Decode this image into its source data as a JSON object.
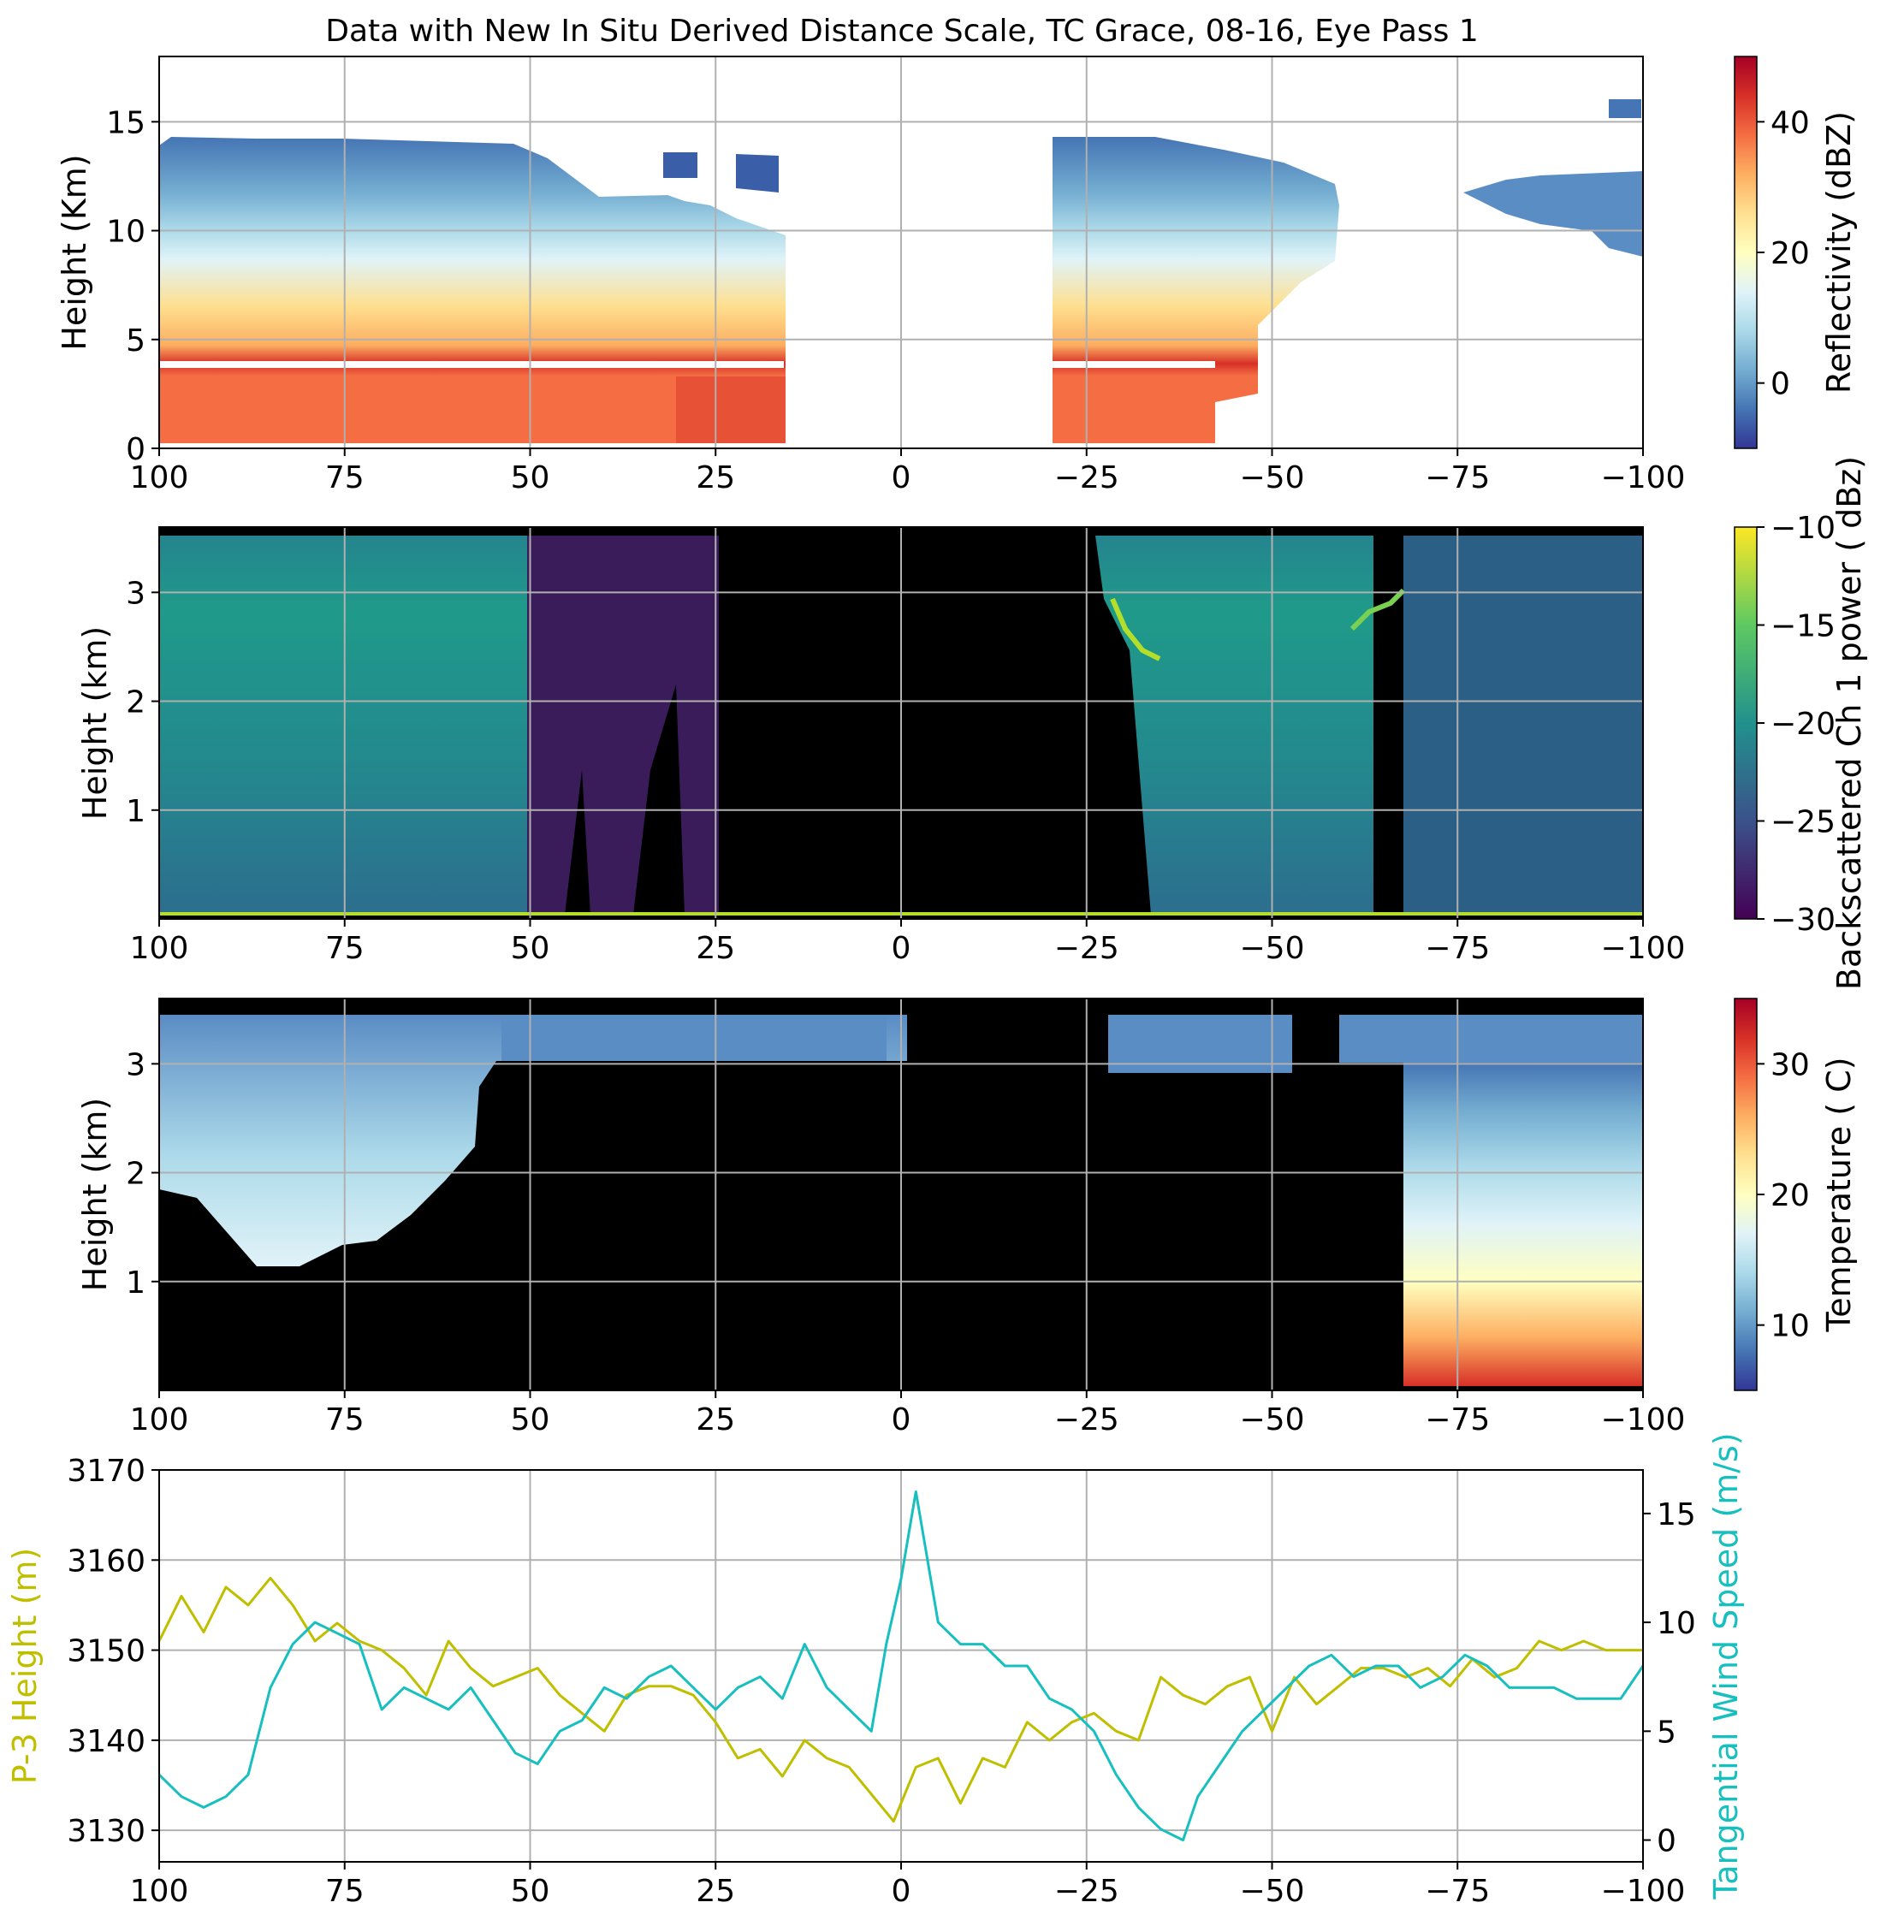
{
  "title": "Data with New In Situ Derived Distance Scale, TC Grace, 08-16, Eye Pass 1",
  "colors": {
    "p3_height": "#bfbf00",
    "tangential_wind": "#17bfbf",
    "grid": "#b0b0b0"
  },
  "chart_data": [
    {
      "type": "heatmap",
      "name": "radar-reflectivity",
      "xlim": [
        100,
        -100
      ],
      "ylim": [
        0,
        18
      ],
      "xticks": [
        100,
        75,
        50,
        25,
        0,
        -25,
        -50,
        -75,
        -100
      ],
      "xtick_labels": [
        "100",
        "75",
        "50",
        "25",
        "0",
        "−25",
        "−50",
        "−75",
        "−100"
      ],
      "yticks": [
        0,
        5,
        10,
        15
      ],
      "ylabel": "Height (Km)",
      "colorbar": {
        "label": "Reflectivity (dBZ)",
        "range": [
          -10,
          50
        ],
        "ticks": [
          0,
          20,
          40
        ],
        "colormap": "RdYlBu_r"
      },
      "grid": true,
      "data_gaps_x": [
        [
          -16,
          20
        ]
      ]
    },
    {
      "type": "heatmap",
      "name": "lidar-backscatter",
      "xlim": [
        100,
        -100
      ],
      "ylim": [
        0,
        3.6
      ],
      "xticks": [
        100,
        75,
        50,
        25,
        0,
        -25,
        -50,
        -75,
        -100
      ],
      "xtick_labels": [
        "100",
        "75",
        "50",
        "25",
        "0",
        "−25",
        "−50",
        "−75",
        "−100"
      ],
      "yticks": [
        1,
        2,
        3
      ],
      "ylabel": "Height (km)",
      "colorbar": {
        "label": "Backscattered Ch 1 power ( dBz)",
        "range": [
          -30,
          -10
        ],
        "ticks": [
          -10,
          -15,
          -20,
          -25,
          -30
        ],
        "tick_labels": [
          "−10",
          "−15",
          "−20",
          "−25",
          "−30"
        ],
        "colormap": "viridis"
      },
      "grid": true
    },
    {
      "type": "heatmap",
      "name": "lidar-temperature",
      "xlim": [
        100,
        -100
      ],
      "ylim": [
        0,
        3.6
      ],
      "xticks": [
        100,
        75,
        50,
        25,
        0,
        -25,
        -50,
        -75,
        -100
      ],
      "xtick_labels": [
        "100",
        "75",
        "50",
        "25",
        "0",
        "−25",
        "−50",
        "−75",
        "−100"
      ],
      "yticks": [
        1,
        2,
        3
      ],
      "ylabel": "Height (km)",
      "colorbar": {
        "label": "Temperature ( C)",
        "range": [
          5,
          35
        ],
        "ticks": [
          10,
          20,
          30
        ],
        "colormap": "RdYlBu_r"
      },
      "grid": true
    },
    {
      "type": "line",
      "name": "flight-level",
      "xlim": [
        100,
        -100
      ],
      "xticks": [
        100,
        75,
        50,
        25,
        0,
        -25,
        -50,
        -75,
        -100
      ],
      "xtick_labels": [
        "100",
        "75",
        "50",
        "25",
        "0",
        "−25",
        "−50",
        "−75",
        "−100"
      ],
      "ylim_left": [
        3126.5,
        3170
      ],
      "yticks_left": [
        3130,
        3140,
        3150,
        3160,
        3170
      ],
      "ylabel_left": "P-3 Height (m)",
      "ylim_right": [
        -1,
        17
      ],
      "yticks_right": [
        0,
        5,
        10,
        15
      ],
      "ylabel_right": "Tangential Wind Speed (m/s)",
      "grid": true,
      "series": [
        {
          "name": "P-3 Height (m)",
          "axis": "left",
          "color": "#bfbf00",
          "x": [
            100,
            97,
            94,
            91,
            88,
            85,
            82,
            79,
            76,
            73,
            70,
            67,
            64,
            61,
            58,
            55,
            52,
            49,
            46,
            43,
            40,
            37,
            34,
            31,
            28,
            25,
            22,
            19,
            16,
            13,
            10,
            7,
            4,
            1,
            -2,
            -5,
            -8,
            -11,
            -14,
            -17,
            -20,
            -23,
            -26,
            -29,
            -32,
            -35,
            -38,
            -41,
            -44,
            -47,
            -50,
            -53,
            -56,
            -59,
            -62,
            -65,
            -68,
            -71,
            -74,
            -77,
            -80,
            -83,
            -86,
            -89,
            -92,
            -95,
            -98,
            -100
          ],
          "y": [
            3151,
            3156,
            3152,
            3157,
            3155,
            3158,
            3155,
            3151,
            3153,
            3151,
            3150,
            3148,
            3145,
            3151,
            3148,
            3146,
            3147,
            3148,
            3145,
            3143,
            3141,
            3145,
            3146,
            3146,
            3145,
            3142,
            3138,
            3139,
            3136,
            3140,
            3138,
            3137,
            3134,
            3131,
            3137,
            3138,
            3133,
            3138,
            3137,
            3142,
            3140,
            3142,
            3143,
            3141,
            3140,
            3147,
            3145,
            3144,
            3146,
            3147,
            3141,
            3147,
            3144,
            3146,
            3148,
            3148,
            3147,
            3148,
            3146,
            3149,
            3147,
            3148,
            3151,
            3150,
            3151,
            3150,
            3150,
            3150
          ]
        },
        {
          "name": "Tangential Wind Speed (m/s)",
          "axis": "right",
          "color": "#17bfbf",
          "x": [
            100,
            97,
            94,
            91,
            88,
            85,
            82,
            79,
            76,
            73,
            70,
            67,
            64,
            61,
            58,
            55,
            52,
            49,
            46,
            43,
            40,
            37,
            34,
            31,
            28,
            25,
            22,
            19,
            16,
            13,
            10,
            7,
            4,
            2,
            0,
            -2,
            -5,
            -8,
            -11,
            -14,
            -17,
            -20,
            -23,
            -26,
            -29,
            -32,
            -35,
            -38,
            -40,
            -43,
            -46,
            -49,
            -52,
            -55,
            -58,
            -61,
            -64,
            -67,
            -70,
            -73,
            -76,
            -79,
            -82,
            -85,
            -88,
            -91,
            -94,
            -97,
            -100
          ],
          "x_note_ignore": "",
          "y": [
            3,
            2,
            1.5,
            2,
            3,
            7,
            9,
            10,
            9.5,
            9,
            6,
            7,
            6.5,
            6,
            7,
            5.5,
            4,
            3.5,
            5,
            5.5,
            7,
            6.5,
            7.5,
            8,
            7,
            6,
            7,
            7.5,
            6.5,
            9,
            7,
            6,
            5,
            9,
            12,
            16,
            10,
            9,
            9,
            8,
            8,
            6.5,
            6,
            5,
            3,
            1.5,
            0.5,
            0,
            2,
            3.5,
            5,
            6,
            7,
            8,
            8.5,
            7.5,
            8,
            8,
            7,
            7.5,
            8.5,
            8,
            7,
            7,
            7,
            6.5,
            6.5,
            6.5,
            8
          ]
        }
      ]
    }
  ]
}
